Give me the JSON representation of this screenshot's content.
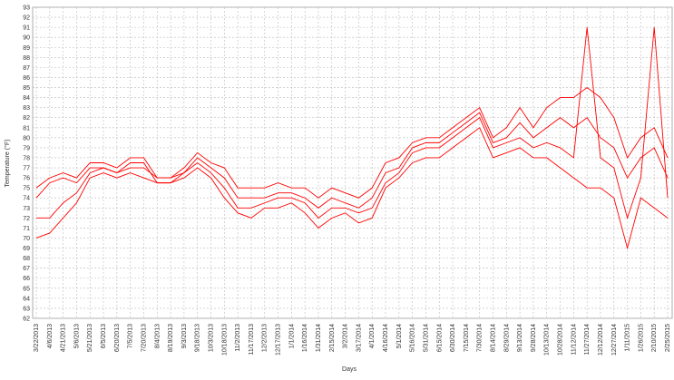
{
  "chart_data": {
    "type": "line",
    "y_label": "Temperature (°F)",
    "x_label": "Days",
    "categories": [
      "3/22/2013",
      "4/6/2013",
      "4/21/2013",
      "5/6/2013",
      "5/21/2013",
      "6/5/2013",
      "6/20/2013",
      "7/5/2013",
      "7/20/2013",
      "8/4/2013",
      "8/19/2013",
      "9/3/2013",
      "9/18/2013",
      "10/3/2013",
      "10/18/2013",
      "11/2/2013",
      "11/17/2013",
      "12/2/2013",
      "12/17/2013",
      "1/1/2014",
      "1/16/2014",
      "1/31/2014",
      "2/15/2014",
      "3/2/2014",
      "3/17/2014",
      "4/1/2014",
      "4/16/2014",
      "5/1/2014",
      "5/16/2014",
      "5/31/2014",
      "6/15/2014",
      "6/30/2014",
      "7/15/2014",
      "7/30/2014",
      "8/14/2014",
      "8/29/2014",
      "9/13/2014",
      "9/28/2014",
      "10/13/2014",
      "10/28/2014",
      "11/12/2014",
      "11/27/2014",
      "12/12/2014",
      "12/27/2014",
      "1/11/2015",
      "1/26/2015",
      "2/10/2015",
      "2/25/2015"
    ],
    "series": [
      {
        "color": "#ff0000",
        "values": [
          75,
          76,
          76.5,
          76,
          77.5,
          77.5,
          77,
          78,
          78,
          76,
          76,
          77,
          78.5,
          77.5,
          77,
          75,
          75,
          75,
          75.5,
          75,
          75,
          74,
          75,
          74.5,
          74,
          75,
          77.5,
          78,
          79.5,
          80,
          80,
          81,
          82,
          83,
          80,
          81,
          83,
          81,
          83,
          84,
          84,
          85,
          84,
          82,
          78,
          80,
          81,
          78
        ]
      },
      {
        "color": "#ff0000",
        "values": [
          74,
          75.5,
          76,
          75.5,
          77,
          77,
          76.5,
          77.5,
          77.5,
          75.5,
          75.5,
          76.5,
          78,
          77,
          76,
          74,
          74,
          74,
          74.5,
          74.5,
          74,
          73,
          74,
          73.5,
          73,
          74,
          76.5,
          77,
          79,
          79.5,
          79.5,
          80.5,
          81.5,
          82.5,
          79.5,
          80,
          81.5,
          80,
          81,
          82,
          81,
          82,
          80,
          79,
          76,
          78,
          79,
          76
        ]
      },
      {
        "color": "#ff0000",
        "values": [
          72,
          72,
          73.5,
          74.5,
          76.5,
          77,
          76.5,
          77,
          77,
          76,
          76,
          76.5,
          77.5,
          76.5,
          75,
          73,
          73,
          73.5,
          74,
          74,
          73.5,
          72,
          73,
          73,
          72.5,
          73,
          75.5,
          76.5,
          78.5,
          79,
          79,
          80,
          81,
          82,
          79,
          79.5,
          80,
          79,
          79.5,
          79,
          78,
          91,
          78,
          77,
          72,
          76,
          91,
          74
        ]
      },
      {
        "color": "#ff0000",
        "values": [
          70,
          70.5,
          72,
          73.5,
          76,
          76.5,
          76,
          76.5,
          76,
          75.5,
          75.5,
          76,
          77,
          76,
          74,
          72.5,
          72,
          73,
          73,
          73.5,
          72.5,
          71,
          72,
          72.5,
          71.5,
          72,
          75,
          76,
          77.5,
          78,
          78,
          79,
          80,
          81,
          78,
          78.5,
          79,
          78,
          78,
          77,
          76,
          75,
          75,
          74,
          69,
          74,
          73,
          72
        ]
      }
    ],
    "ylim": [
      62,
      93
    ],
    "yticks": [
      62,
      63,
      64,
      65,
      66,
      67,
      68,
      69,
      70,
      71,
      72,
      73,
      74,
      75,
      76,
      77,
      78,
      79,
      80,
      81,
      82,
      83,
      84,
      85,
      86,
      87,
      88,
      89,
      90,
      91,
      92,
      93
    ],
    "grid": true
  }
}
